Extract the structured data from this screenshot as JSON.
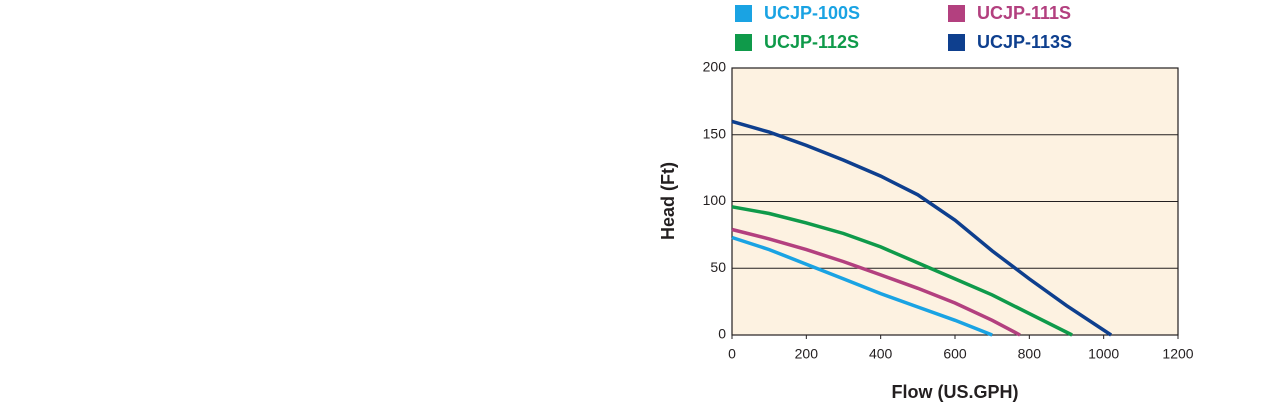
{
  "chart_data": {
    "type": "line",
    "x_label": "Flow (US.GPH)",
    "y_label": "Head (Ft)",
    "xlim": [
      0,
      1200
    ],
    "xticks": [
      0,
      200,
      400,
      600,
      800,
      1000,
      1200
    ],
    "ylim": [
      0,
      200
    ],
    "yticks": [
      0,
      50,
      100,
      150,
      200
    ],
    "grid": true,
    "legend": "top",
    "background": "#fdf2e1",
    "series": [
      {
        "name": "UCJP-100S",
        "color": "#1aa3e3",
        "x": [
          0,
          100,
          200,
          300,
          400,
          500,
          600,
          700
        ],
        "values": [
          73,
          64,
          53,
          42,
          31,
          21,
          11,
          0
        ]
      },
      {
        "name": "UCJP-111S",
        "color": "#b3407f",
        "x": [
          0,
          100,
          200,
          300,
          400,
          500,
          600,
          700,
          775
        ],
        "values": [
          79,
          72,
          64,
          55,
          45,
          35,
          24,
          11,
          0
        ]
      },
      {
        "name": "UCJP-112S",
        "color": "#0f9a4a",
        "x": [
          0,
          100,
          200,
          300,
          400,
          500,
          600,
          700,
          800,
          915
        ],
        "values": [
          96,
          91,
          84,
          76,
          66,
          54,
          42,
          30,
          16,
          0
        ]
      },
      {
        "name": "UCJP-113S",
        "color": "#0e3f8e",
        "x": [
          0,
          100,
          200,
          300,
          400,
          500,
          600,
          700,
          800,
          900,
          1020
        ],
        "values": [
          160,
          152,
          142,
          131,
          119,
          105,
          86,
          63,
          42,
          22,
          0
        ]
      }
    ]
  }
}
